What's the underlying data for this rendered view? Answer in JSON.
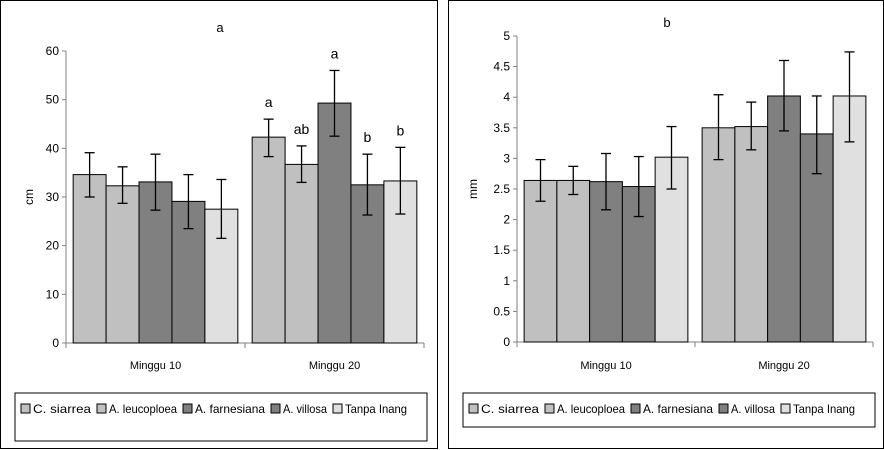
{
  "legend": [
    "C. siarrea",
    "A. leucoploea",
    "A. farnesiana",
    "A. villosa",
    "Tanpa Inang"
  ],
  "colors": [
    "#c0c0c0",
    "#c0c0c0",
    "#808080",
    "#808080",
    "#e0e0e0"
  ],
  "chart_data": [
    {
      "type": "bar",
      "title": "a",
      "ylabel": "cm",
      "xlabel": "",
      "ylim": [
        0,
        60
      ],
      "yticks": [
        "0",
        "10",
        "20",
        "30",
        "40",
        "50",
        "60"
      ],
      "categories": [
        "Minggu 10",
        "Minggu 20"
      ],
      "grid": false,
      "legend_position": "bottom",
      "series": [
        {
          "name": "C. siarrea",
          "values": [
            34.6,
            42.3
          ],
          "err_low": [
            30.0,
            38.3
          ],
          "err_high": [
            39.1,
            46.0
          ],
          "annotations": [
            "",
            "a"
          ]
        },
        {
          "name": "A. leucoploea",
          "values": [
            32.3,
            36.7
          ],
          "err_low": [
            28.7,
            33.0
          ],
          "err_high": [
            36.2,
            40.5
          ],
          "annotations": [
            "",
            "ab"
          ]
        },
        {
          "name": "A. farnesiana",
          "values": [
            33.1,
            49.3
          ],
          "err_low": [
            27.3,
            42.5
          ],
          "err_high": [
            38.8,
            56.0
          ],
          "annotations": [
            "",
            "a"
          ]
        },
        {
          "name": "A. villosa",
          "values": [
            29.1,
            32.5
          ],
          "err_low": [
            23.5,
            26.3
          ],
          "err_high": [
            34.6,
            38.8
          ],
          "annotations": [
            "",
            "b"
          ]
        },
        {
          "name": "Tanpa Inang",
          "values": [
            27.5,
            33.3
          ],
          "err_low": [
            21.5,
            26.5
          ],
          "err_high": [
            33.6,
            40.2
          ],
          "annotations": [
            "",
            "b"
          ]
        }
      ]
    },
    {
      "type": "bar",
      "title": "b",
      "ylabel": "mm",
      "xlabel": "",
      "ylim": [
        0,
        5
      ],
      "yticks": [
        "0",
        "0.5",
        "1",
        "1.5",
        "2",
        "2.5",
        "3",
        "3.5",
        "4",
        "4.5",
        "5"
      ],
      "categories": [
        "Minggu 10",
        "Minggu 20"
      ],
      "grid": false,
      "legend_position": "bottom",
      "series": [
        {
          "name": "C. siarrea",
          "values": [
            2.64,
            3.5
          ],
          "err_low": [
            2.3,
            2.98
          ],
          "err_high": [
            2.98,
            4.04
          ]
        },
        {
          "name": "A. leucoploea",
          "values": [
            2.64,
            3.52
          ],
          "err_low": [
            2.41,
            3.14
          ],
          "err_high": [
            2.87,
            3.92
          ]
        },
        {
          "name": "A. farnesiana",
          "values": [
            2.62,
            4.02
          ],
          "err_low": [
            2.16,
            3.45
          ],
          "err_high": [
            3.08,
            4.6
          ]
        },
        {
          "name": "A. villosa",
          "values": [
            2.54,
            3.4
          ],
          "err_low": [
            2.05,
            2.75
          ],
          "err_high": [
            3.03,
            4.02
          ]
        },
        {
          "name": "Tanpa Inang",
          "values": [
            3.02,
            4.02
          ],
          "err_low": [
            2.5,
            3.27
          ],
          "err_high": [
            3.52,
            4.74
          ]
        }
      ]
    }
  ]
}
